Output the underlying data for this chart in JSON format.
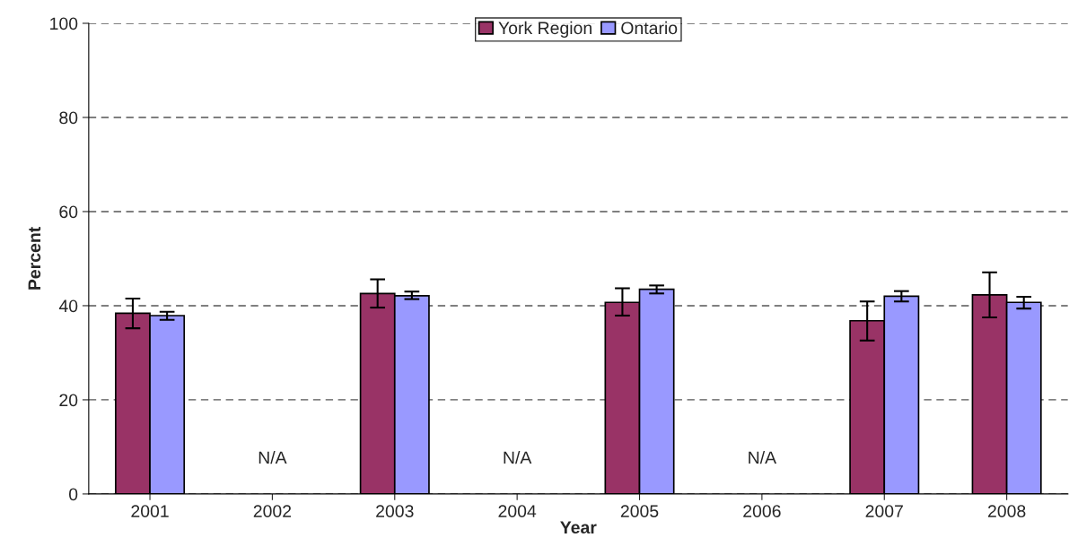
{
  "chart_data": {
    "type": "bar",
    "xlabel": "Year",
    "ylabel": "Percent",
    "categories": [
      "2001",
      "2002",
      "2003",
      "2004",
      "2005",
      "2006",
      "2007",
      "2008"
    ],
    "series": [
      {
        "name": "York Region",
        "color": "#993366",
        "values": [
          38.4,
          null,
          42.6,
          null,
          40.7,
          null,
          36.8,
          42.3
        ],
        "errors": [
          [
            35.2,
            41.5
          ],
          null,
          [
            39.6,
            45.6
          ],
          null,
          [
            37.9,
            43.7
          ],
          null,
          [
            32.6,
            40.9
          ],
          [
            37.5,
            47.1
          ]
        ]
      },
      {
        "name": "Ontario",
        "color": "#9999ff",
        "values": [
          37.9,
          null,
          42.1,
          null,
          43.5,
          null,
          42.0,
          40.7
        ],
        "errors": [
          [
            37.0,
            38.7
          ],
          null,
          [
            41.4,
            43.0
          ],
          null,
          [
            42.6,
            44.3
          ],
          null,
          [
            40.9,
            43.1
          ],
          [
            39.4,
            41.9
          ]
        ]
      }
    ],
    "annotations": [
      "N/A",
      "N/A",
      "N/A"
    ],
    "ylim": [
      0,
      100
    ],
    "yticks": [
      0,
      20,
      40,
      60,
      80,
      100
    ],
    "grid": "y",
    "legend": "top"
  }
}
